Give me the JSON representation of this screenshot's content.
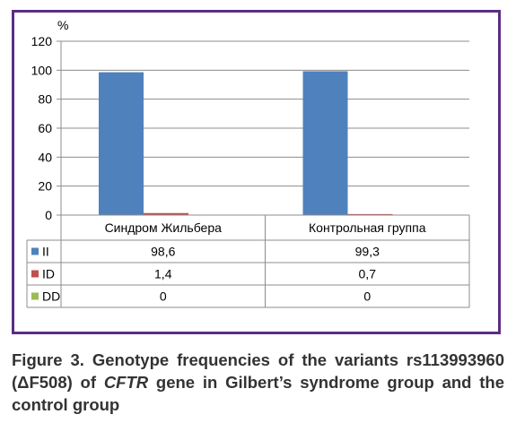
{
  "chart_data": {
    "type": "bar",
    "unit_label": "%",
    "categories": [
      "Синдром Жильбера",
      "Контрольная группа"
    ],
    "series": [
      {
        "name": "II",
        "values": [
          98.6,
          99.3
        ],
        "display": [
          "98,6",
          "99,3"
        ],
        "color": "#4f81bd"
      },
      {
        "name": "ID",
        "values": [
          1.4,
          0.7
        ],
        "display": [
          "1,4",
          "0,7"
        ],
        "color": "#c0504d"
      },
      {
        "name": "DD",
        "values": [
          0,
          0
        ],
        "display": [
          "0",
          "0"
        ],
        "color": "#9bbb59"
      }
    ],
    "ylim": [
      0,
      120
    ],
    "yticks": [
      "0",
      "20",
      "40",
      "60",
      "80",
      "100",
      "120"
    ],
    "grid": true,
    "legend": "data-table-left"
  },
  "caption": {
    "prefix": "Figure 3. Genotype frequencies of the variants rs113993960 (ΔF508) of ",
    "gene": "CFTR",
    "suffix": " gene in Gilbert’s syndrome group and the control group"
  }
}
